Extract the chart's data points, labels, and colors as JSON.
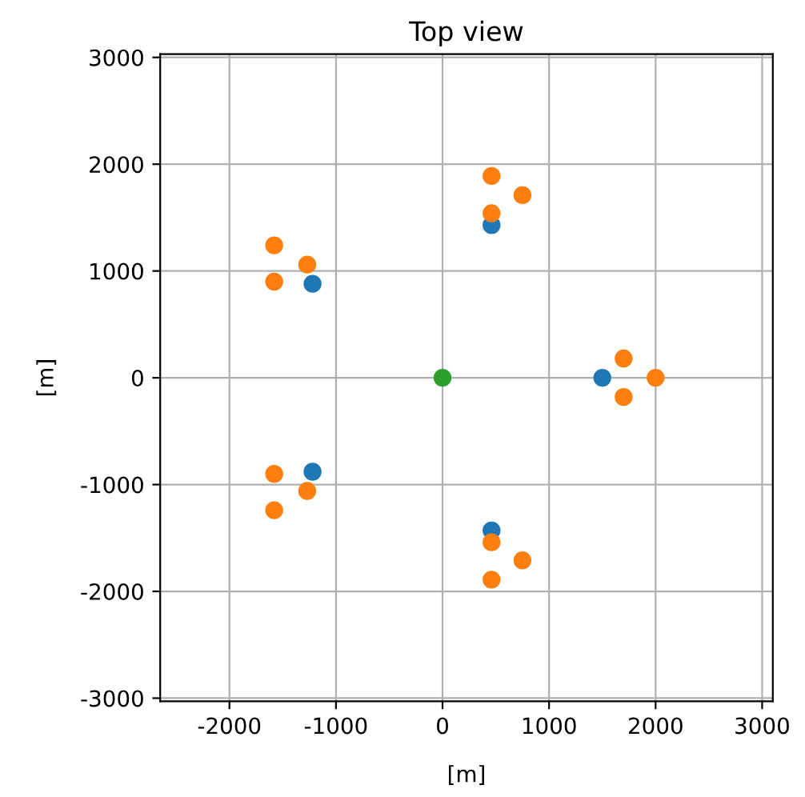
{
  "chart_data": {
    "type": "scatter",
    "title": "Top view",
    "xlabel": "[m]",
    "ylabel": "[m]",
    "xlim": [
      -2650,
      3100
    ],
    "ylim": [
      -3030,
      3030
    ],
    "xticks": [
      -2000,
      -1000,
      0,
      1000,
      2000,
      3000
    ],
    "yticks": [
      -3000,
      -2000,
      -1000,
      0,
      1000,
      2000,
      3000
    ],
    "grid": true,
    "marker": "circle",
    "series": [
      {
        "color": "#1f77b4",
        "x": [
          1500,
          460,
          -1220,
          -1220,
          460
        ],
        "values": [
          0,
          1430,
          880,
          -880,
          -1430
        ]
      },
      {
        "color": "#ff7f0e",
        "x": [
          2000,
          1700,
          1700,
          460,
          460,
          750,
          -1580,
          -1270,
          -1580,
          -1580,
          -1270,
          -1580,
          460,
          460,
          750
        ],
        "values": [
          0,
          180,
          -180,
          1890,
          1540,
          1710,
          1240,
          1060,
          900,
          -900,
          -1060,
          -1240,
          -1890,
          -1540,
          -1710
        ]
      },
      {
        "color": "#2ca02c",
        "x": [
          0
        ],
        "values": [
          0
        ]
      }
    ]
  }
}
